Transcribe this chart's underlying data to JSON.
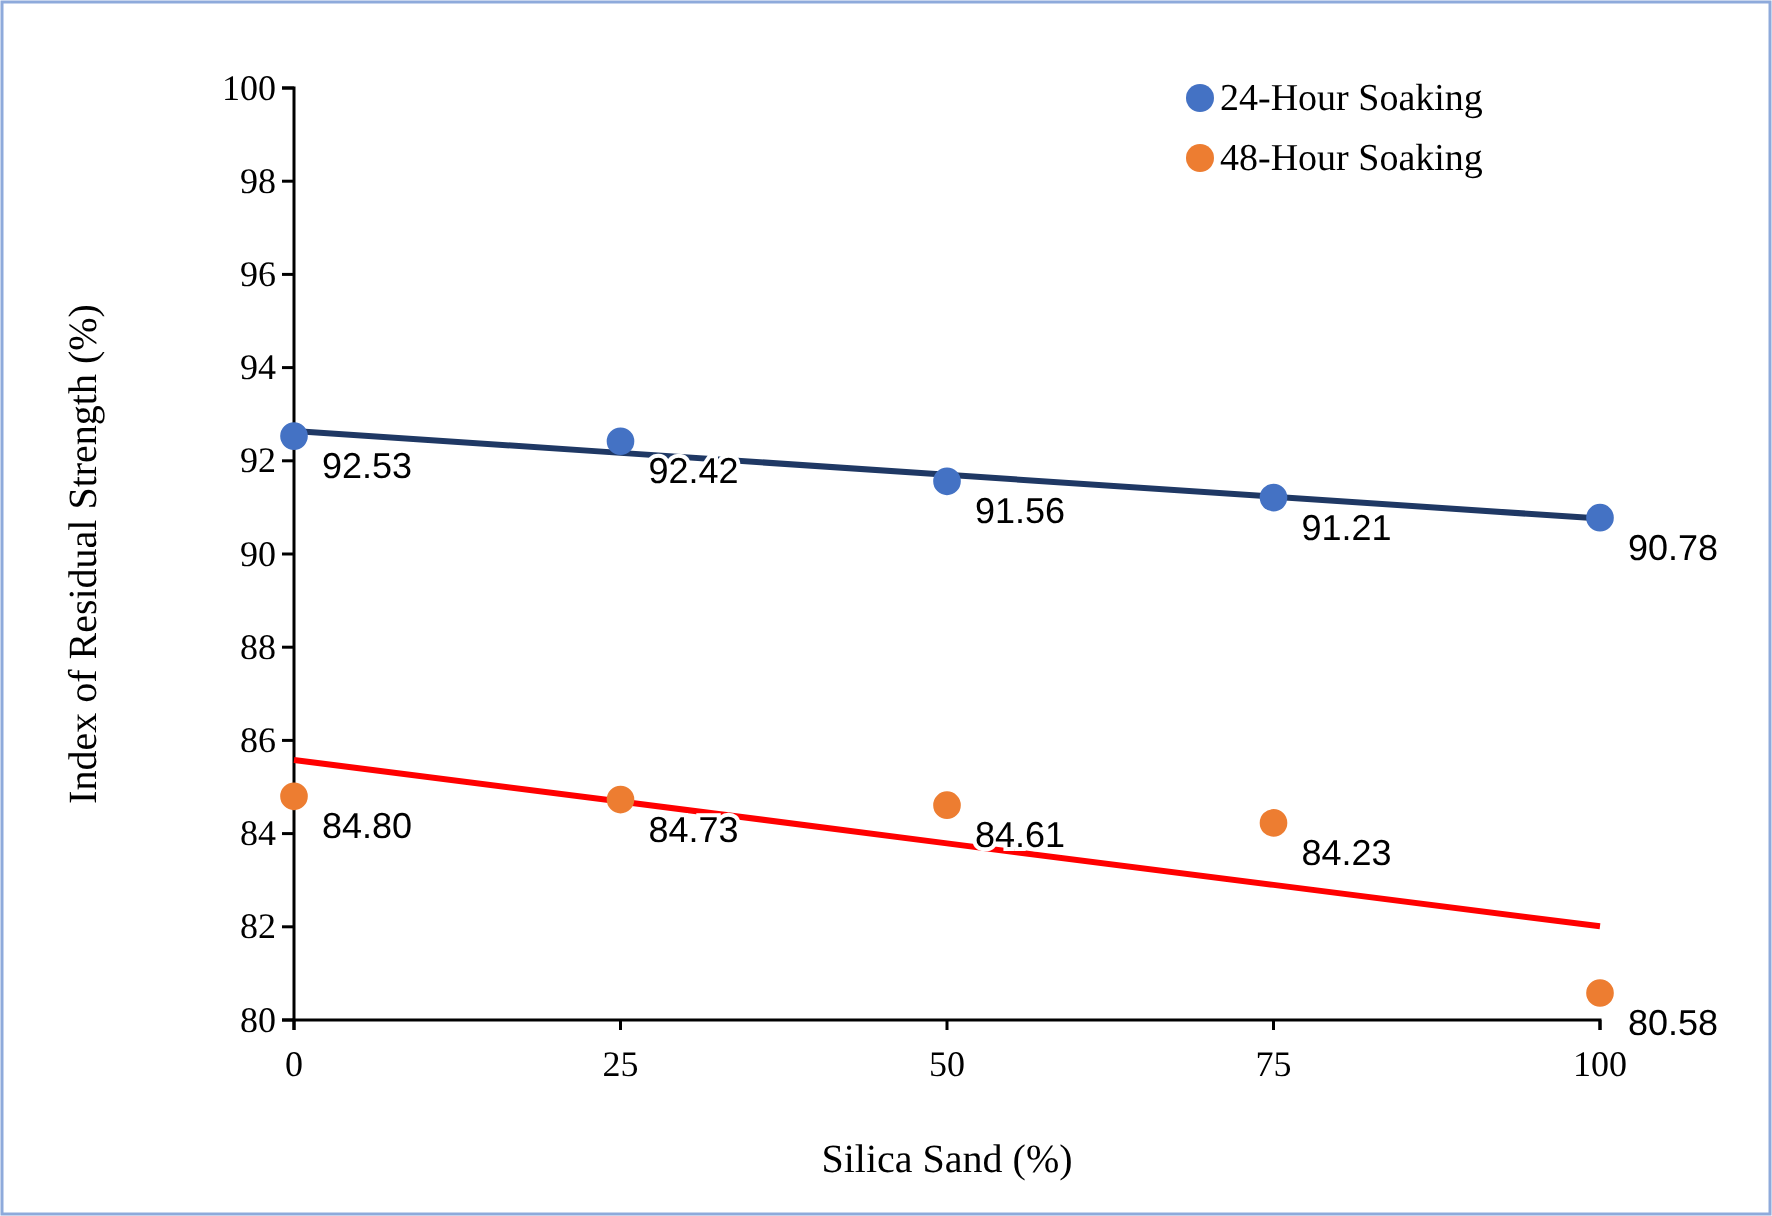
{
  "chart_data": {
    "type": "scatter",
    "xlabel": "Silica Sand (%)",
    "ylabel": "Index of Residual Strength (%)",
    "x": [
      0,
      25,
      50,
      75,
      100
    ],
    "xlim": [
      0,
      100
    ],
    "xticks": [
      0,
      25,
      50,
      75,
      100
    ],
    "ylim": [
      80,
      100
    ],
    "yticks": [
      80,
      82,
      84,
      86,
      88,
      90,
      92,
      94,
      96,
      98,
      100
    ],
    "grid": false,
    "legend": "top right",
    "marker": "circle",
    "series": [
      {
        "type": "line",
        "marker": "none",
        "color": "#1f3864",
        "values": [
          92.64,
          92.17,
          91.7,
          91.23,
          90.76
        ]
      },
      {
        "type": "line",
        "marker": "none",
        "color": "#ff0000",
        "values": [
          85.58,
          84.69,
          83.79,
          82.9,
          82.01
        ]
      },
      {
        "name": "24-Hour Soaking",
        "color": "#4472c4",
        "values": [
          92.53,
          92.42,
          91.56,
          91.21,
          90.78
        ],
        "value_labels": [
          "92.53",
          "92.42",
          "91.56",
          "91.21",
          "90.78"
        ]
      },
      {
        "name": "48-Hour Soaking",
        "color": "#ed7d31",
        "values": [
          84.8,
          84.73,
          84.61,
          84.23,
          80.58
        ],
        "value_labels": [
          "84.80",
          "84.73",
          "84.61",
          "84.23",
          "80.58"
        ]
      }
    ]
  }
}
